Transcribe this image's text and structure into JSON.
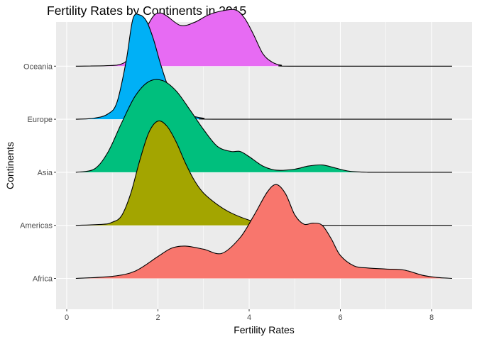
{
  "chart_data": {
    "type": "ridgeline",
    "title": "Fertility Rates by Continents in 2015",
    "xlabel": "Fertility Rates",
    "ylabel": "Continents",
    "xlim": [
      0,
      8.8
    ],
    "x_ticks": [
      0,
      2,
      4,
      6,
      8
    ],
    "density_range": [
      0.2,
      8.45
    ],
    "grid": true,
    "legend": "none",
    "categories": [
      "Africa",
      "Americas",
      "Asia",
      "Europe",
      "Oceania"
    ],
    "series": [
      {
        "name": "Africa",
        "color": "#F8766D",
        "x": [
          0.2,
          1.0,
          1.5,
          2.0,
          2.3,
          2.6,
          3.0,
          3.4,
          3.8,
          4.1,
          4.4,
          4.6,
          4.8,
          5.0,
          5.2,
          5.4,
          5.6,
          5.8,
          6.0,
          6.3,
          6.6,
          7.0,
          7.4,
          7.8,
          8.1,
          8.45
        ],
        "density": [
          0.0,
          0.02,
          0.07,
          0.21,
          0.29,
          0.31,
          0.28,
          0.24,
          0.39,
          0.6,
          0.83,
          0.9,
          0.81,
          0.61,
          0.52,
          0.53,
          0.51,
          0.38,
          0.22,
          0.12,
          0.1,
          0.09,
          0.08,
          0.03,
          0.01,
          0.0
        ]
      },
      {
        "name": "Americas",
        "color": "#A3A500",
        "x": [
          0.2,
          0.8,
          1.0,
          1.2,
          1.4,
          1.6,
          1.8,
          2.0,
          2.2,
          2.4,
          2.6,
          2.8,
          3.0,
          3.3,
          3.6,
          4.0,
          4.3,
          4.6,
          5.0,
          8.45
        ],
        "density": [
          0.0,
          0.01,
          0.03,
          0.09,
          0.3,
          0.62,
          0.89,
          1.0,
          0.95,
          0.8,
          0.6,
          0.43,
          0.31,
          0.2,
          0.12,
          0.05,
          0.02,
          0.005,
          0.0,
          0.0
        ]
      },
      {
        "name": "Asia",
        "color": "#00BF7D",
        "x": [
          0.2,
          0.6,
          0.9,
          1.2,
          1.5,
          1.8,
          2.1,
          2.4,
          2.7,
          3.0,
          3.3,
          3.6,
          3.8,
          4.0,
          4.3,
          4.6,
          5.0,
          5.3,
          5.6,
          5.9,
          6.2,
          6.6,
          7.0,
          7.5,
          8.0,
          8.45
        ],
        "density": [
          0.0,
          0.03,
          0.19,
          0.47,
          0.73,
          0.87,
          0.88,
          0.78,
          0.6,
          0.41,
          0.25,
          0.2,
          0.2,
          0.15,
          0.06,
          0.02,
          0.03,
          0.06,
          0.07,
          0.04,
          0.01,
          0.0,
          0.0,
          0.0,
          0.0,
          0.0
        ]
      },
      {
        "name": "Europe",
        "color": "#00B0F6",
        "x": [
          0.2,
          0.6,
          0.9,
          1.1,
          1.3,
          1.45,
          1.6,
          1.75,
          1.9,
          2.05,
          2.2,
          2.35,
          2.5,
          2.7,
          3.0,
          3.4,
          8.45
        ],
        "density": [
          0.0,
          0.01,
          0.05,
          0.16,
          0.55,
          0.96,
          1.0,
          0.94,
          0.77,
          0.54,
          0.34,
          0.2,
          0.1,
          0.04,
          0.01,
          0.0,
          0.0
        ]
      },
      {
        "name": "Oceania",
        "color": "#E76BF3",
        "x": [
          0.2,
          1.1,
          1.4,
          1.7,
          1.9,
          2.05,
          2.2,
          2.5,
          2.8,
          3.1,
          3.4,
          3.7,
          3.9,
          4.1,
          4.3,
          4.5,
          4.7,
          5.0,
          8.45
        ],
        "density": [
          0.0,
          0.01,
          0.1,
          0.33,
          0.48,
          0.51,
          0.48,
          0.39,
          0.42,
          0.49,
          0.53,
          0.54,
          0.46,
          0.3,
          0.12,
          0.04,
          0.01,
          0.0,
          0.0
        ]
      }
    ]
  }
}
